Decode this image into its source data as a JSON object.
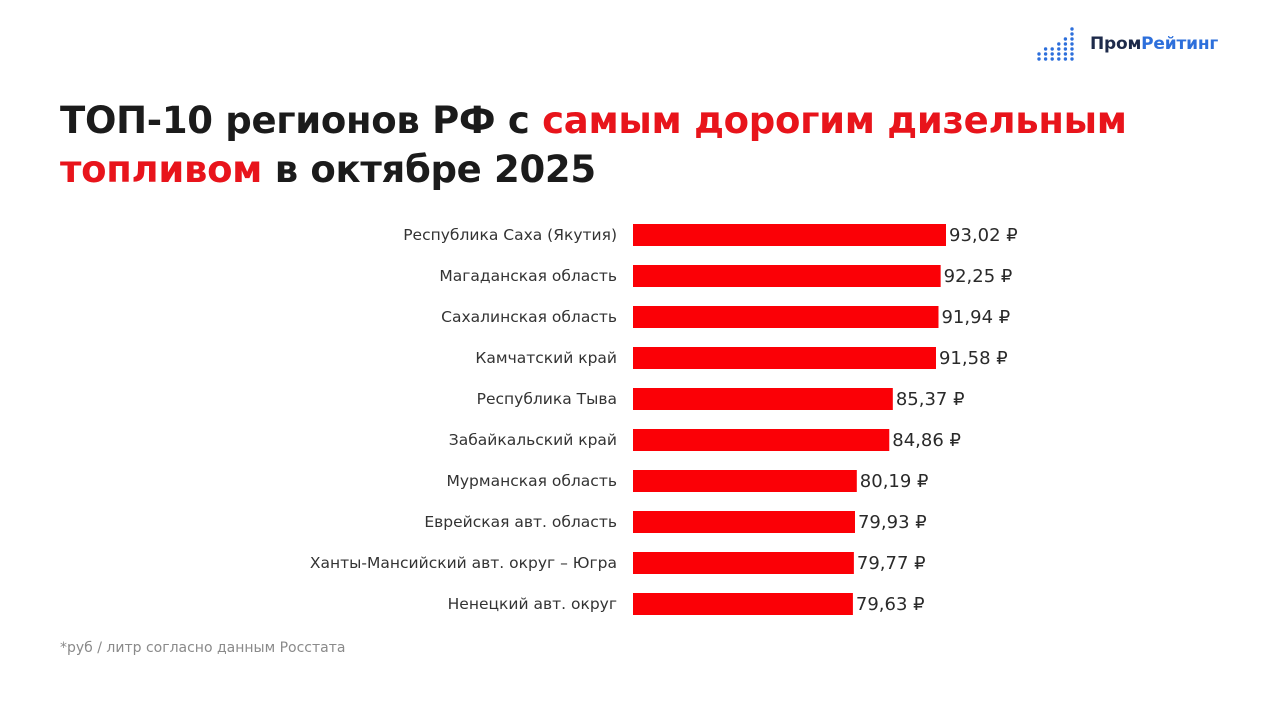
{
  "brand": {
    "name_part1": "Пром",
    "name_part2": "Рейтинг"
  },
  "title": {
    "part1": "ТОП-10 регионов РФ с ",
    "accent1": "самым дорогим дизельным",
    "accent2": "топливом",
    "part2": " в октябре 2025"
  },
  "footnote": "*руб / литр согласно данным Росстата",
  "colors": {
    "bar": "#fb0006",
    "accent_text": "#e8141b",
    "brand_dots": "#2d6fdb"
  },
  "chart_data": {
    "type": "bar",
    "orientation": "horizontal",
    "categories": [
      "Республика Саха (Якутия)",
      "Магаданская область",
      "Сахалинская область",
      "Камчатский край",
      "Республика Тыва",
      "Забайкальский край",
      "Мурманская область",
      "Еврейская авт. область",
      "Ханты-Мансийский авт. округ – Югра",
      "Ненецкий авт. округ"
    ],
    "values": [
      93.02,
      92.25,
      91.94,
      91.58,
      85.37,
      84.86,
      80.19,
      79.93,
      79.77,
      79.63
    ],
    "value_labels": [
      "93,02 ₽",
      "92,25 ₽",
      "91,94 ₽",
      "91,58 ₽",
      "85,37 ₽",
      "84,86 ₽",
      "80,19 ₽",
      "79,93 ₽",
      "79,77 ₽",
      "79,63 ₽"
    ],
    "xlim": [
      48,
      93.02
    ],
    "grid": false,
    "legend": "none"
  }
}
